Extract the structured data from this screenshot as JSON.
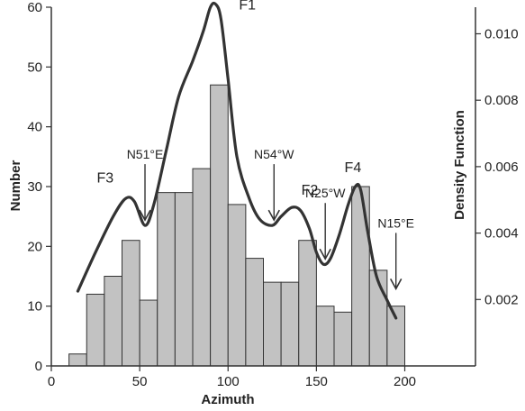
{
  "chart_data": {
    "type": "bar",
    "title": "",
    "xlabel": "Azimuth",
    "ylabel": "Number",
    "y2label": "Density Function",
    "xlim": [
      0,
      240
    ],
    "ylim": [
      0,
      60
    ],
    "y2lim": [
      0,
      0.0108
    ],
    "xticks": [
      0,
      50,
      100,
      150,
      200
    ],
    "yticks": [
      0,
      10,
      20,
      30,
      40,
      50,
      60
    ],
    "y2ticks": [
      {
        "value": 0.002,
        "label": "0.002"
      },
      {
        "value": 0.004,
        "label": "0.004"
      },
      {
        "value": 0.006,
        "label": "0.006"
      },
      {
        "value": 0.008,
        "label": "0.008"
      },
      {
        "value": 0.01,
        "label": "0.010"
      }
    ],
    "grid": false,
    "bin_width": 10,
    "bins": [
      {
        "x": 10,
        "value": 2
      },
      {
        "x": 20,
        "value": 12
      },
      {
        "x": 30,
        "value": 15
      },
      {
        "x": 40,
        "value": 21
      },
      {
        "x": 50,
        "value": 11
      },
      {
        "x": 60,
        "value": 29
      },
      {
        "x": 70,
        "value": 29
      },
      {
        "x": 80,
        "value": 33
      },
      {
        "x": 90,
        "value": 47
      },
      {
        "x": 100,
        "value": 27
      },
      {
        "x": 110,
        "value": 18
      },
      {
        "x": 120,
        "value": 14
      },
      {
        "x": 130,
        "value": 14
      },
      {
        "x": 140,
        "value": 21
      },
      {
        "x": 150,
        "value": 10
      },
      {
        "x": 160,
        "value": 9
      },
      {
        "x": 170,
        "value": 30
      },
      {
        "x": 180,
        "value": 16
      },
      {
        "x": 190,
        "value": 10
      }
    ],
    "density_curve": {
      "x": [
        15,
        25,
        35,
        42,
        47,
        53,
        58,
        65,
        72,
        80,
        86,
        90,
        93,
        96,
        100,
        105,
        112,
        118,
        125,
        130,
        136,
        141,
        146,
        150,
        154,
        158,
        163,
        168,
        172,
        175,
        179,
        184,
        190,
        195
      ],
      "y": [
        12.5,
        19,
        25,
        28,
        27.5,
        23.5,
        27,
        36,
        45,
        51,
        56,
        60,
        60.5,
        58,
        48,
        35,
        28,
        24.5,
        23.5,
        25,
        26.5,
        26,
        23,
        19,
        17,
        18,
        22,
        27,
        30,
        29.5,
        22.5,
        15,
        11,
        8
      ]
    },
    "peaks": [
      {
        "label": "F1",
        "x": 98,
        "y": 60.5
      },
      {
        "label": "F2",
        "x": 143,
        "y": 26.5
      },
      {
        "label": "F3",
        "x": 40,
        "y": 28
      },
      {
        "label": "F4",
        "x": 172,
        "y": 30
      }
    ],
    "annotations": [
      {
        "label": "N51°E",
        "x": 53,
        "y": 23.5
      },
      {
        "label": "N54°W",
        "x": 126,
        "y": 23.5
      },
      {
        "label": "N25°W",
        "x": 155,
        "y": 17
      },
      {
        "label": "N15°E",
        "x": 195,
        "y": 12
      }
    ]
  }
}
